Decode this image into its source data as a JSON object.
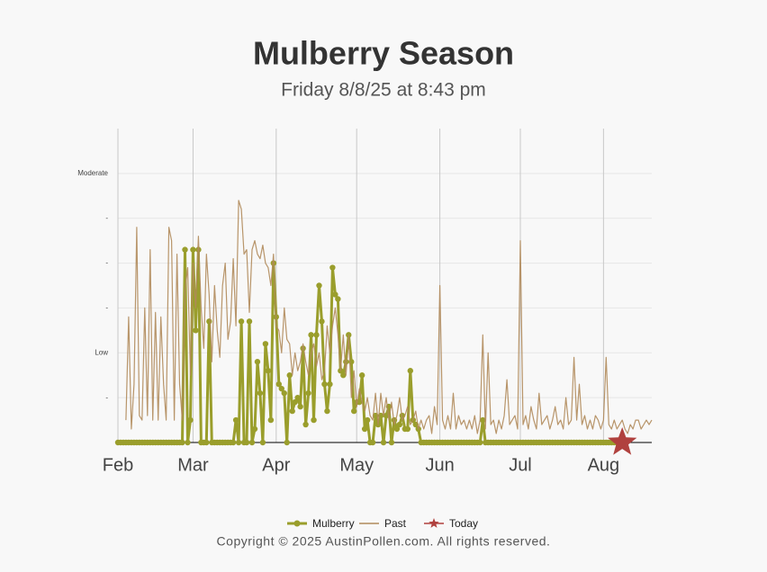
{
  "chart_data": {
    "type": "line",
    "title": "Mulberry Season",
    "subtitle": "Friday 8/8/25 at 8:43 pm",
    "copyright": "Copyright © 2025 AustinPollen.com.  All rights reserved.",
    "xlim": [
      0,
      199
    ],
    "xticks": [
      {
        "value": 0,
        "label": "Feb"
      },
      {
        "value": 28,
        "label": "Mar"
      },
      {
        "value": 59,
        "label": "Apr"
      },
      {
        "value": 89,
        "label": "May"
      },
      {
        "value": 120,
        "label": "Jun"
      },
      {
        "value": 150,
        "label": "Jul"
      },
      {
        "value": 181,
        "label": "Aug"
      }
    ],
    "ylim": [
      0,
      7
    ],
    "yticks": [
      {
        "value": 1,
        "label": "-"
      },
      {
        "value": 2,
        "label": "Low"
      },
      {
        "value": 3,
        "label": "-"
      },
      {
        "value": 4,
        "label": "-"
      },
      {
        "value": 5,
        "label": "-"
      },
      {
        "value": 6,
        "label": "Moderate"
      }
    ],
    "grid": true,
    "legend": "bottom",
    "x": [
      0,
      1,
      2,
      3,
      4,
      5,
      6,
      7,
      8,
      9,
      10,
      11,
      12,
      13,
      14,
      15,
      16,
      17,
      18,
      19,
      20,
      21,
      22,
      23,
      24,
      25,
      26,
      27,
      28,
      29,
      30,
      31,
      32,
      33,
      34,
      35,
      36,
      37,
      38,
      39,
      40,
      41,
      42,
      43,
      44,
      45,
      46,
      47,
      48,
      49,
      50,
      51,
      52,
      53,
      54,
      55,
      56,
      57,
      58,
      59,
      60,
      61,
      62,
      63,
      64,
      65,
      66,
      67,
      68,
      69,
      70,
      71,
      72,
      73,
      74,
      75,
      76,
      77,
      78,
      79,
      80,
      81,
      82,
      83,
      84,
      85,
      86,
      87,
      88,
      89,
      90,
      91,
      92,
      93,
      94,
      95,
      96,
      97,
      98,
      99,
      100,
      101,
      102,
      103,
      104,
      105,
      106,
      107,
      108,
      109,
      110,
      111,
      112,
      113,
      114,
      115,
      116,
      117,
      118,
      119,
      120,
      121,
      122,
      123,
      124,
      125,
      126,
      127,
      128,
      129,
      130,
      131,
      132,
      133,
      134,
      135,
      136,
      137,
      138,
      139,
      140,
      141,
      142,
      143,
      144,
      145,
      146,
      147,
      148,
      149,
      150,
      151,
      152,
      153,
      154,
      155,
      156,
      157,
      158,
      159,
      160,
      161,
      162,
      163,
      164,
      165,
      166,
      167,
      168,
      169,
      170,
      171,
      172,
      173,
      174,
      175,
      176,
      177,
      178,
      179,
      180,
      181,
      182,
      183,
      184,
      185,
      186,
      187,
      188,
      189,
      190,
      191,
      192,
      193,
      194,
      195,
      196,
      197,
      198,
      199
    ],
    "series": [
      {
        "name": "Mulberry",
        "color": "#9a9e2c",
        "style": "dots",
        "values": [
          0,
          0,
          0,
          0,
          0,
          0,
          0,
          0,
          0,
          0,
          0,
          0,
          0,
          0,
          0,
          0,
          0,
          0,
          0,
          0,
          0,
          0,
          0,
          0,
          0,
          4.3,
          0,
          0.5,
          4.3,
          2.5,
          4.3,
          0,
          0,
          0,
          2.7,
          0,
          0,
          0,
          0,
          0,
          0,
          0,
          0,
          0,
          0.5,
          0,
          2.7,
          0,
          0,
          2.7,
          0,
          0.3,
          1.8,
          1.1,
          0,
          2.2,
          1.6,
          0.5,
          4.0,
          2.8,
          1.3,
          1.2,
          1.1,
          0,
          1.5,
          0.7,
          0.9,
          1.0,
          0.8,
          2.1,
          0.4,
          1.1,
          2.4,
          0.5,
          2.4,
          3.5,
          2.7,
          1.3,
          0.7,
          1.3,
          3.9,
          3.3,
          3.2,
          1.6,
          1.5,
          1.8,
          2.4,
          1.8,
          0.7,
          0.9,
          0.9,
          1.5,
          0.3,
          0.5,
          0,
          0,
          0.6,
          0.4,
          0.6,
          0,
          0.6,
          0.8,
          0,
          0.5,
          0.3,
          0.4,
          0.6,
          0.3,
          0.3,
          1.6,
          0.5,
          0.4,
          0.3,
          0,
          0,
          0,
          0,
          0,
          0,
          0,
          0,
          0,
          0,
          0,
          0,
          0,
          0,
          0,
          0,
          0,
          0,
          0,
          0,
          0,
          0,
          0,
          0.5,
          0,
          0,
          0,
          0,
          0,
          0,
          0,
          0,
          0,
          0,
          0,
          0,
          0,
          0,
          0,
          0,
          0,
          0,
          0,
          0,
          0,
          0,
          0,
          0,
          0,
          0,
          0,
          0,
          0,
          0,
          0,
          0,
          0,
          0,
          0,
          0,
          0,
          0,
          0,
          0,
          0,
          0,
          0,
          0,
          0,
          0,
          0,
          0,
          0,
          0,
          0,
          0,
          null,
          null,
          null,
          null,
          null,
          null,
          null,
          null,
          null,
          null,
          null
        ]
      },
      {
        "name": "Past",
        "color": "#b08a5a",
        "style": "thin",
        "values": [
          null,
          null,
          null,
          0.5,
          2.8,
          0.3,
          1.3,
          4.8,
          0.6,
          0.5,
          3.0,
          0.6,
          4.3,
          0.5,
          2.9,
          0.5,
          2.8,
          1.3,
          0.5,
          4.8,
          4.5,
          0.5,
          4.2,
          1.3,
          0.5,
          3.4,
          3.9,
          1.5,
          4.0,
          3.0,
          4.6,
          3.0,
          2.1,
          4.2,
          3.3,
          1.8,
          3.5,
          2.5,
          1.9,
          3.5,
          4.0,
          2.3,
          2.7,
          4.1,
          2.6,
          5.4,
          5.2,
          4.2,
          4.3,
          2.9,
          4.3,
          4.5,
          4.2,
          4.1,
          4.4,
          4.0,
          3.9,
          3.5,
          4.2,
          2.6,
          2.5,
          2.0,
          3.0,
          2.3,
          2.2,
          1.5,
          2.0,
          1.6,
          1.8,
          2.2,
          1.8,
          1.5,
          2.0,
          2.2,
          1.7,
          2.0,
          1.4,
          1.6,
          2.6,
          2.0,
          2.6,
          3.0,
          2.4,
          1.6,
          2.4,
          1.5,
          2.4,
          1.0,
          1.6,
          0.8,
          1.2,
          0.9,
          0.7,
          1.0,
          0.6,
          0.5,
          1.1,
          0.4,
          1.1,
          0.6,
          1.0,
          0.5,
          0.9,
          0.4,
          0.6,
          1.0,
          0.5,
          0.6,
          0.8,
          0.4,
          0.5,
          0.7,
          0.3,
          0.5,
          0.3,
          0.5,
          0.6,
          0.2,
          0.8,
          0.4,
          3.5,
          0.5,
          0.3,
          0.6,
          0.3,
          1.1,
          0.3,
          0.6,
          0.4,
          0.5,
          0.3,
          0.5,
          0.3,
          0.6,
          0.2,
          0.5,
          2.4,
          0.3,
          2.0,
          0.4,
          0.5,
          0.2,
          0.5,
          0.3,
          0.6,
          1.4,
          0.4,
          0.5,
          0.6,
          0.3,
          4.5,
          0.4,
          0.6,
          0.3,
          0.8,
          0.5,
          0.3,
          1.1,
          0.4,
          0.5,
          0.6,
          0.3,
          0.5,
          0.8,
          0.4,
          0.5,
          0.3,
          1.0,
          0.4,
          0.5,
          1.9,
          0.5,
          1.3,
          0.4,
          0.6,
          0.3,
          0.5,
          0.3,
          0.6,
          0.5,
          0.3,
          0.5,
          1.9,
          0.4,
          0.3,
          0.5,
          0.3,
          0.4,
          0.5,
          0.3,
          0.2,
          0.4,
          0.3,
          0.5,
          0.5,
          0.3,
          0.4,
          0.5,
          0.4,
          0.5
        ]
      },
      {
        "name": "Today",
        "color": "#b0413e",
        "style": "star",
        "x": [
          188
        ],
        "values": [
          0
        ]
      }
    ]
  }
}
